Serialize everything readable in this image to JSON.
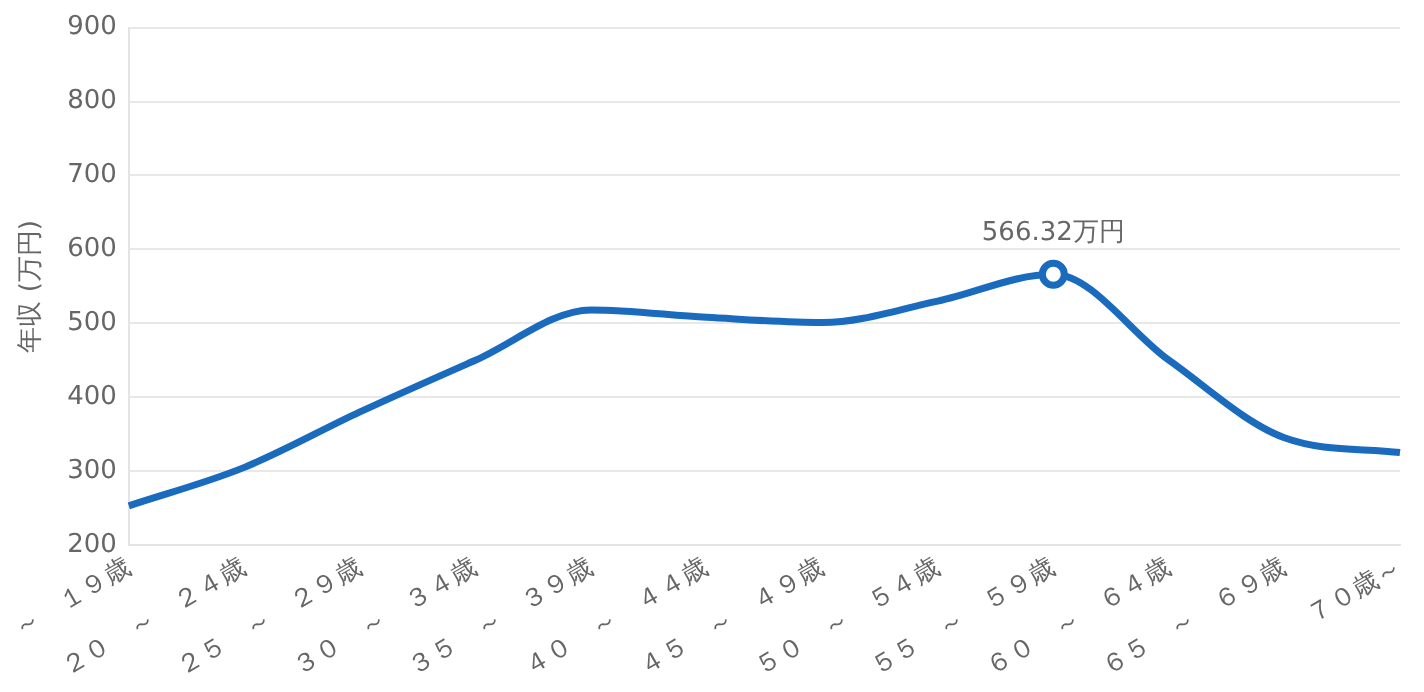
{
  "chart_data": {
    "type": "line",
    "ylabel": "年収 (万円)",
    "categories": [
      "～　１９歳",
      "２０　～　２４歳",
      "２５　～　２９歳",
      "３０　～　３４歳",
      "３５　～　３９歳",
      "４０　～　４４歳",
      "４５　～　４９歳",
      "５０　～　５４歳",
      "５５　～　５９歳",
      "６０　～　６４歳",
      "６５　～　６９歳",
      "７０歳～"
    ],
    "series": [
      {
        "color": "#1a6bbd",
        "values": [
          253,
          305,
          380,
          450,
          518,
          508,
          501,
          530,
          566.32,
          450,
          345,
          325
        ]
      }
    ],
    "ylim": [
      200,
      900
    ],
    "yticks": [
      200,
      300,
      400,
      500,
      600,
      700,
      800,
      900
    ],
    "grid": "y",
    "marker": "none",
    "line_style": "solid",
    "legend": false,
    "annotations": [
      {
        "text": "566.32万円",
        "x": "５５　～　５９歳",
        "y": 566.32
      }
    ]
  }
}
